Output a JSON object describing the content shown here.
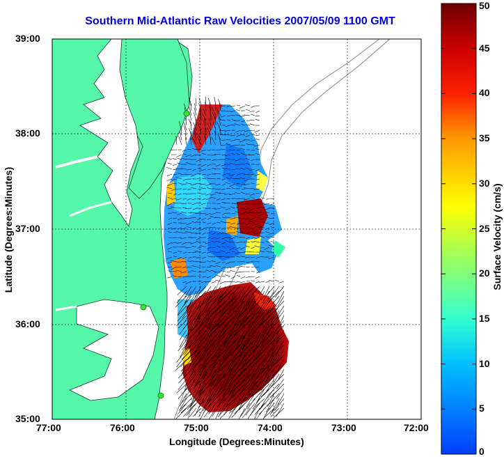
{
  "title": "Southern Mid-Atlantic Raw Velocities 2007/05/09 1100 GMT",
  "axes": {
    "xlabel": "Longitude (Degrees:Minutes)",
    "ylabel": "Latitude (Degrees:Minutes)",
    "x_ticks": [
      "77:00",
      "76:00",
      "75:00",
      "74:00",
      "73:00",
      "72:00"
    ],
    "y_ticks": [
      "39:00",
      "38:00",
      "37:00",
      "36:00",
      "35:00"
    ]
  },
  "colorbar": {
    "label": "Surface Velocity (cm/s)",
    "ticks": [
      "50",
      "45",
      "40",
      "35",
      "30",
      "25",
      "20",
      "15",
      "10",
      "5",
      "0"
    ],
    "range": [
      0,
      50
    ]
  },
  "colors": {
    "title": "#0000e6",
    "land": "#55f7a8",
    "water": "#ffffff",
    "bathymetry": "#9a9a9a",
    "station": "#33e633"
  },
  "grid": true
}
